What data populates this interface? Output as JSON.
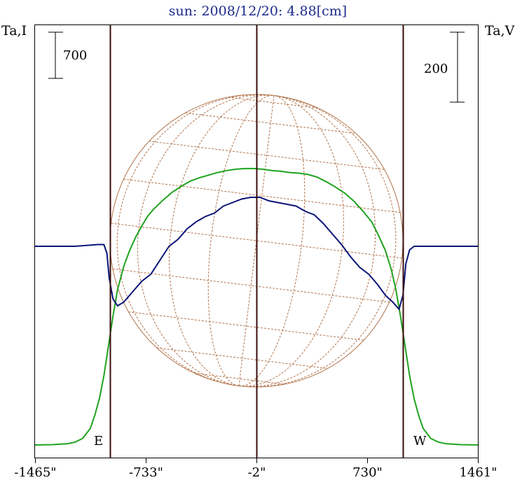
{
  "chart_data": {
    "type": "line",
    "title": "sun: 2008/12/20: 4.88[cm]",
    "left_axis_label": "Ta,I",
    "right_axis_label": "Ta,V",
    "scale_bars": {
      "left": "700",
      "right": "200"
    },
    "limb_labels": {
      "east": "E",
      "west": "W"
    },
    "x_ticks": [
      {
        "value": -1465,
        "label": "-1465\""
      },
      {
        "value": -733,
        "label": "-733\""
      },
      {
        "value": -2,
        "label": "-2\""
      },
      {
        "value": 730,
        "label": "730\""
      },
      {
        "value": 1461,
        "label": "1461\""
      }
    ],
    "vertical_markers": [
      -970,
      -2,
      966
    ],
    "xlim": [
      -1465,
      1461
    ],
    "series": [
      {
        "key": "ta_i",
        "color": "#1fa31f",
        "y_relative": "intensity, scale bar 700",
        "points": [
          [
            -1465,
            1
          ],
          [
            -1350,
            5
          ],
          [
            -1250,
            20
          ],
          [
            -1200,
            45
          ],
          [
            -1150,
            100
          ],
          [
            -1100,
            250
          ],
          [
            -1070,
            450
          ],
          [
            -1040,
            700
          ],
          [
            -1010,
            1050
          ],
          [
            -990,
            1350
          ],
          [
            -970,
            1650
          ],
          [
            -950,
            1950
          ],
          [
            -920,
            2350
          ],
          [
            -880,
            2700
          ],
          [
            -840,
            2950
          ],
          [
            -800,
            3150
          ],
          [
            -760,
            3320
          ],
          [
            -720,
            3470
          ],
          [
            -680,
            3580
          ],
          [
            -620,
            3710
          ],
          [
            -560,
            3830
          ],
          [
            -500,
            3920
          ],
          [
            -440,
            4000
          ],
          [
            -380,
            4050
          ],
          [
            -320,
            4090
          ],
          [
            -260,
            4130
          ],
          [
            -200,
            4160
          ],
          [
            -140,
            4180
          ],
          [
            -80,
            4190
          ],
          [
            -20,
            4190
          ],
          [
            40,
            4180
          ],
          [
            100,
            4160
          ],
          [
            160,
            4150
          ],
          [
            220,
            4130
          ],
          [
            280,
            4120
          ],
          [
            340,
            4100
          ],
          [
            400,
            4060
          ],
          [
            460,
            3990
          ],
          [
            520,
            3910
          ],
          [
            580,
            3820
          ],
          [
            640,
            3700
          ],
          [
            700,
            3550
          ],
          [
            760,
            3380
          ],
          [
            800,
            3200
          ],
          [
            850,
            2950
          ],
          [
            890,
            2650
          ],
          [
            920,
            2350
          ],
          [
            950,
            1950
          ],
          [
            970,
            1650
          ],
          [
            990,
            1350
          ],
          [
            1010,
            1050
          ],
          [
            1040,
            700
          ],
          [
            1070,
            450
          ],
          [
            1100,
            250
          ],
          [
            1150,
            100
          ],
          [
            1200,
            45
          ],
          [
            1250,
            20
          ],
          [
            1350,
            5
          ],
          [
            1461,
            1
          ]
        ]
      },
      {
        "key": "ta_v",
        "color": "#0a1478",
        "y_relative": "polarization, scale bar 200",
        "points": [
          [
            -1465,
            0
          ],
          [
            -1200,
            0
          ],
          [
            -1050,
            5
          ],
          [
            -1010,
            5
          ],
          [
            -990,
            -20
          ],
          [
            -975,
            -90
          ],
          [
            -950,
            -150
          ],
          [
            -920,
            -170
          ],
          [
            -880,
            -160
          ],
          [
            -820,
            -130
          ],
          [
            -760,
            -100
          ],
          [
            -700,
            -80
          ],
          [
            -640,
            -40
          ],
          [
            -580,
            0
          ],
          [
            -520,
            20
          ],
          [
            -460,
            50
          ],
          [
            -400,
            70
          ],
          [
            -340,
            85
          ],
          [
            -280,
            95
          ],
          [
            -220,
            115
          ],
          [
            -160,
            125
          ],
          [
            -100,
            135
          ],
          [
            -40,
            140
          ],
          [
            20,
            140
          ],
          [
            80,
            130
          ],
          [
            140,
            125
          ],
          [
            200,
            120
          ],
          [
            260,
            115
          ],
          [
            320,
            100
          ],
          [
            380,
            90
          ],
          [
            440,
            65
          ],
          [
            500,
            35
          ],
          [
            560,
            5
          ],
          [
            620,
            -30
          ],
          [
            680,
            -60
          ],
          [
            740,
            -80
          ],
          [
            800,
            -110
          ],
          [
            850,
            -140
          ],
          [
            900,
            -160
          ],
          [
            940,
            -180
          ],
          [
            966,
            -140
          ],
          [
            985,
            -50
          ],
          [
            1010,
            -10
          ],
          [
            1040,
            0
          ],
          [
            1461,
            0
          ]
        ]
      }
    ],
    "grid": false,
    "legend": "none",
    "solar_disk": {
      "meridians": 10,
      "parallels": 10,
      "colors": {
        "limb": "#b2744c",
        "grid": "#b2744c"
      }
    }
  }
}
